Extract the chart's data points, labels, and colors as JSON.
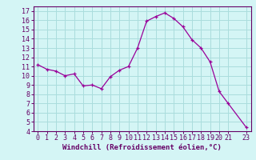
{
  "x": [
    0,
    1,
    2,
    3,
    4,
    5,
    6,
    7,
    8,
    9,
    10,
    11,
    12,
    13,
    14,
    15,
    16,
    17,
    18,
    19,
    20,
    21,
    23
  ],
  "y": [
    11.2,
    10.7,
    10.5,
    10.0,
    10.2,
    8.9,
    9.0,
    8.6,
    9.9,
    10.6,
    11.0,
    13.0,
    15.9,
    16.4,
    16.8,
    16.2,
    15.3,
    13.9,
    13.0,
    11.5,
    8.3,
    7.0,
    4.4
  ],
  "line_color": "#990099",
  "marker": "+",
  "bg_color": "#d4f5f5",
  "grid_color": "#aadddd",
  "axis_color": "#660066",
  "xlabel": "Windchill (Refroidissement éolien,°C)",
  "xlim": [
    -0.5,
    23.5
  ],
  "ylim": [
    4,
    17.5
  ],
  "yticks": [
    4,
    5,
    6,
    7,
    8,
    9,
    10,
    11,
    12,
    13,
    14,
    15,
    16,
    17
  ],
  "xticks": [
    0,
    1,
    2,
    3,
    4,
    5,
    6,
    7,
    8,
    9,
    10,
    11,
    12,
    13,
    14,
    15,
    16,
    17,
    18,
    19,
    20,
    21,
    23
  ],
  "xtick_labels": [
    "0",
    "1",
    "2",
    "3",
    "4",
    "5",
    "6",
    "7",
    "8",
    "9",
    "10",
    "11",
    "12",
    "13",
    "14",
    "15",
    "16",
    "17",
    "18",
    "19",
    "20",
    "21",
    "23"
  ],
  "xlabel_fontsize": 6.5,
  "tick_fontsize": 6.0,
  "marker_size": 3,
  "linewidth": 0.9
}
